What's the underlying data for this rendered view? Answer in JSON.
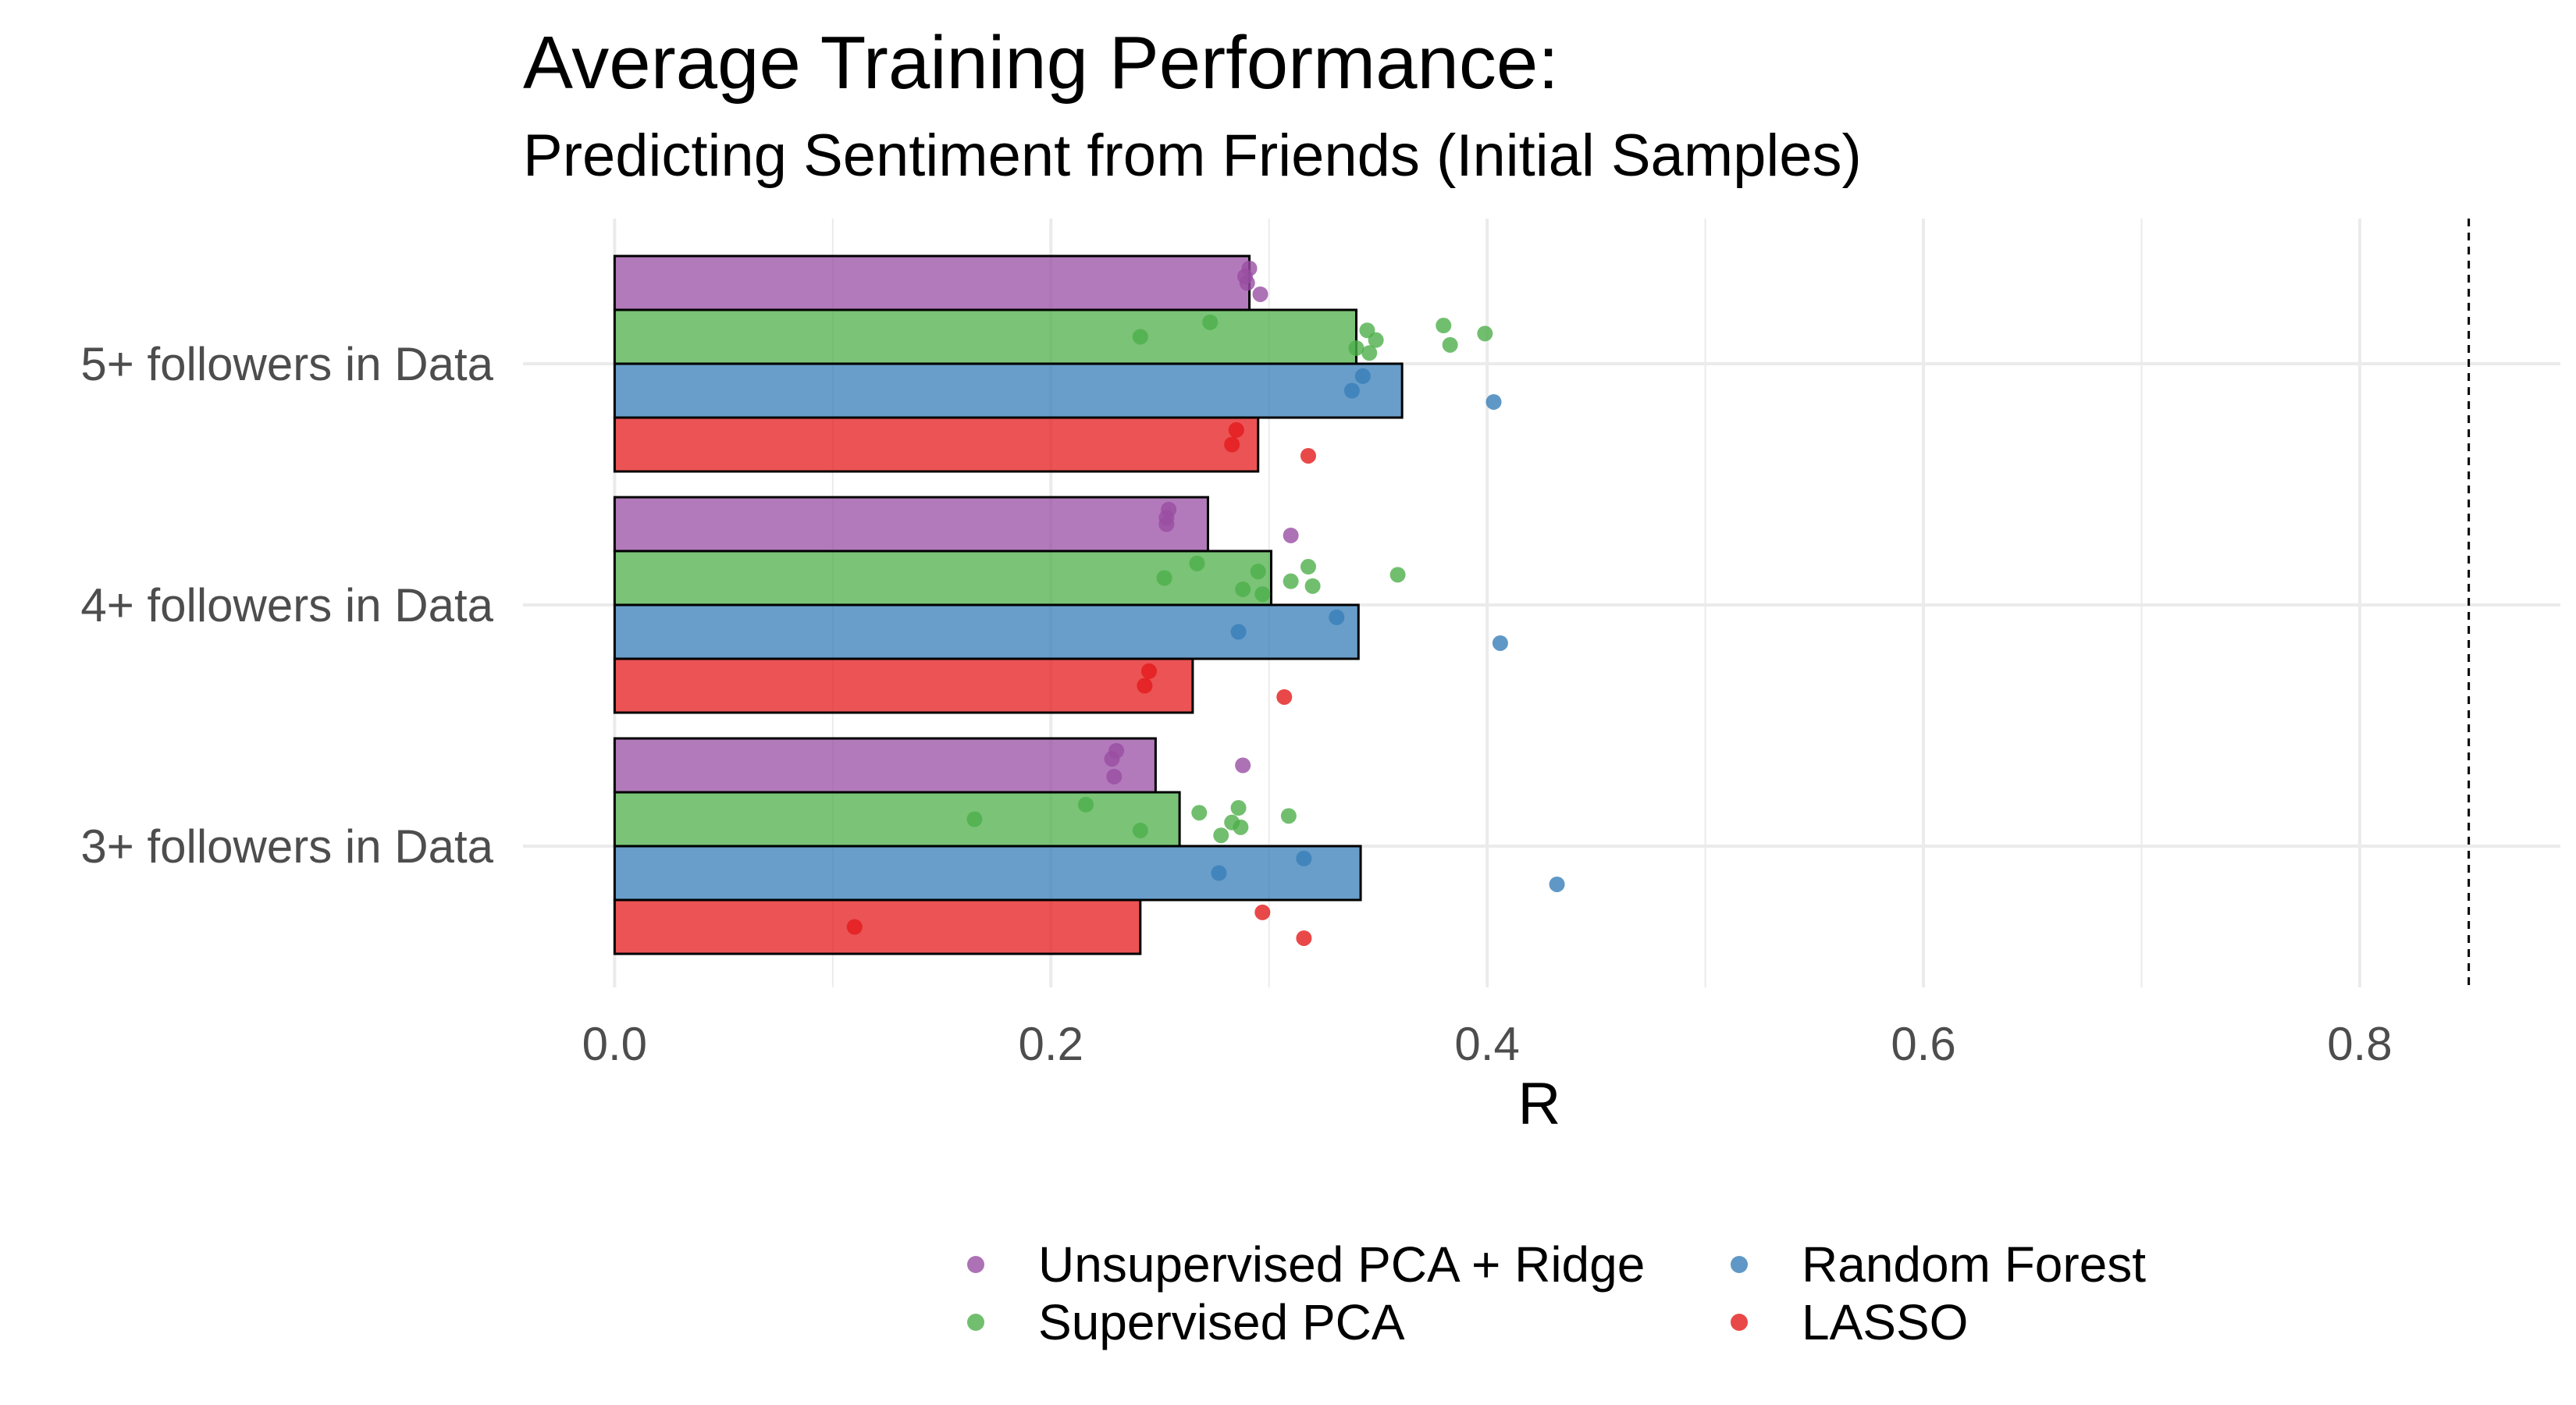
{
  "chart_data": {
    "type": "bar",
    "orientation": "horizontal",
    "title": "Average Training Performance:",
    "subtitle": "Predicting Sentiment from Friends (Initial Samples)",
    "xlabel": "R",
    "ylabel": "",
    "xlim": [
      -0.042,
      0.892
    ],
    "x_ticks": [
      0.0,
      0.2,
      0.4,
      0.6,
      0.8
    ],
    "x_tick_labels": [
      "0.0",
      "0.2",
      "0.4",
      "0.6",
      "0.8"
    ],
    "reference_line": 0.85,
    "grid": true,
    "legend_position": "bottom",
    "categories": [
      "5+ followers in Data",
      "4+ followers in Data",
      "3+ followers in Data"
    ],
    "series": [
      {
        "name": "Unsupervised PCA + Ridge",
        "color": "#984ea3",
        "values": [
          0.291,
          0.272,
          0.248
        ],
        "points": [
          [
            0.29,
            0.291,
            0.296,
            0.289
          ],
          [
            0.253,
            0.254,
            0.31,
            0.253
          ],
          [
            0.288,
            0.23,
            0.229,
            0.228
          ]
        ]
      },
      {
        "name": "Supervised PCA",
        "color": "#4daf4a",
        "values": [
          0.34,
          0.301,
          0.259
        ],
        "points": [
          [
            0.241,
            0.273,
            0.34,
            0.345,
            0.346,
            0.349,
            0.38,
            0.383,
            0.399
          ],
          [
            0.252,
            0.267,
            0.288,
            0.295,
            0.297,
            0.31,
            0.318,
            0.32,
            0.359
          ],
          [
            0.165,
            0.216,
            0.241,
            0.268,
            0.278,
            0.283,
            0.286,
            0.287,
            0.309
          ]
        ]
      },
      {
        "name": "Random Forest",
        "color": "#377eb8",
        "values": [
          0.361,
          0.341,
          0.342
        ],
        "points": [
          [
            0.338,
            0.343,
            0.403
          ],
          [
            0.286,
            0.331,
            0.406
          ],
          [
            0.277,
            0.316,
            0.432
          ]
        ]
      },
      {
        "name": "LASSO",
        "color": "#e41a1c",
        "values": [
          0.295,
          0.265,
          0.241
        ],
        "points": [
          [
            0.283,
            0.285,
            0.318
          ],
          [
            0.243,
            0.245,
            0.307
          ],
          [
            0.11,
            0.297,
            0.316
          ]
        ]
      }
    ]
  }
}
